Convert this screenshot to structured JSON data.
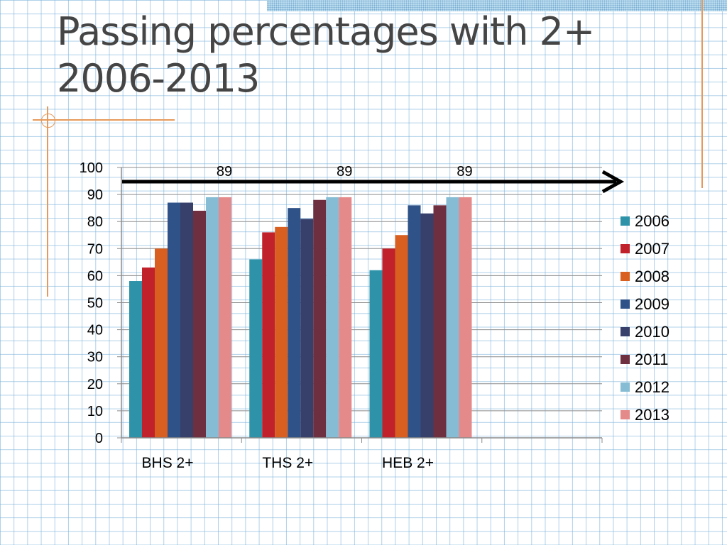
{
  "slide": {
    "title_line1": "Passing percentages with 2+",
    "title_line2": "2006-2013"
  },
  "chart_data": {
    "type": "bar",
    "title": "",
    "xlabel": "",
    "ylabel": "",
    "categories": [
      "BHS 2+",
      "THS 2+",
      "HEB 2+",
      ""
    ],
    "ylim": [
      0,
      100
    ],
    "yticks": [
      0,
      10,
      20,
      30,
      40,
      50,
      60,
      70,
      80,
      90,
      100
    ],
    "grid": true,
    "legend_position": "right",
    "series": [
      {
        "name": "2006",
        "color": "#2e93a8",
        "values": [
          58,
          66,
          62,
          null
        ]
      },
      {
        "name": "2007",
        "color": "#c1212a",
        "values": [
          63,
          76,
          70,
          null
        ]
      },
      {
        "name": "2008",
        "color": "#d85f1f",
        "values": [
          70,
          78,
          75,
          null
        ]
      },
      {
        "name": "2009",
        "color": "#2f5289",
        "values": [
          87,
          85,
          86,
          null
        ]
      },
      {
        "name": "2010",
        "color": "#373f6b",
        "values": [
          87,
          81,
          83,
          null
        ]
      },
      {
        "name": "2011",
        "color": "#6e2f40",
        "values": [
          84,
          88,
          86,
          null
        ]
      },
      {
        "name": "2012",
        "color": "#86bcd4",
        "values": [
          89,
          89,
          89,
          null
        ]
      },
      {
        "name": "2013",
        "color": "#e58a8a",
        "values": [
          89,
          89,
          89,
          null
        ]
      }
    ],
    "annotations": [
      "89",
      "89",
      "89"
    ],
    "arrow": {
      "y_value": 95,
      "color": "#000000"
    }
  }
}
